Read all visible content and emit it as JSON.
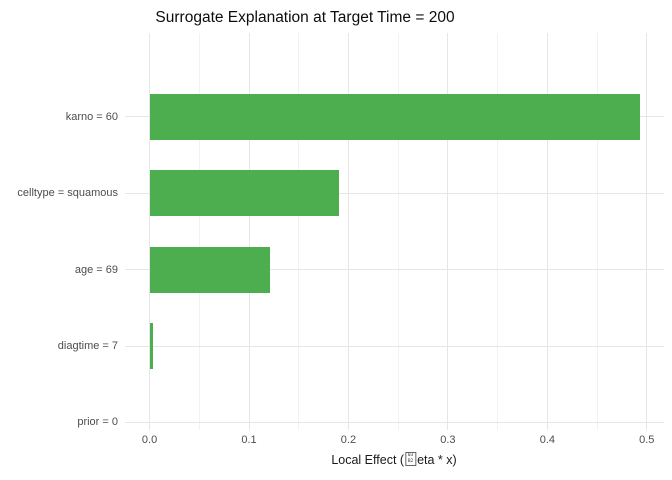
{
  "chart_data": {
    "type": "bar",
    "orientation": "horizontal",
    "title": "Surrogate Explanation at Target Time = 200",
    "categories": [
      "karno = 60",
      "celltype = squamous",
      "age = 69",
      "diagtime = 7",
      "prior = 0"
    ],
    "values": [
      0.493,
      0.19,
      0.121,
      0.003,
      0.0
    ],
    "x_ticks": [
      0.0,
      0.1,
      0.2,
      0.3,
      0.4,
      0.5
    ],
    "x_tick_labels": [
      "0.0",
      "0.1",
      "0.2",
      "0.3",
      "0.4",
      "0.5"
    ],
    "xlim": [
      -0.0247,
      0.5173
    ],
    "xlabel_prefix": "Local Effect (",
    "xlabel_missing_glyph_hex": [
      "03",
      "B2"
    ],
    "xlabel_suffix": "eta * x)",
    "grid": "major-and-minor",
    "legend": "none",
    "bar_color": "#4cae4f",
    "grid_major_color": "#e6e6e6",
    "grid_minor_color": "#f2f2f2",
    "text_color_axis": "#4d4d4d",
    "text_color_title": "#0d0d0d"
  }
}
